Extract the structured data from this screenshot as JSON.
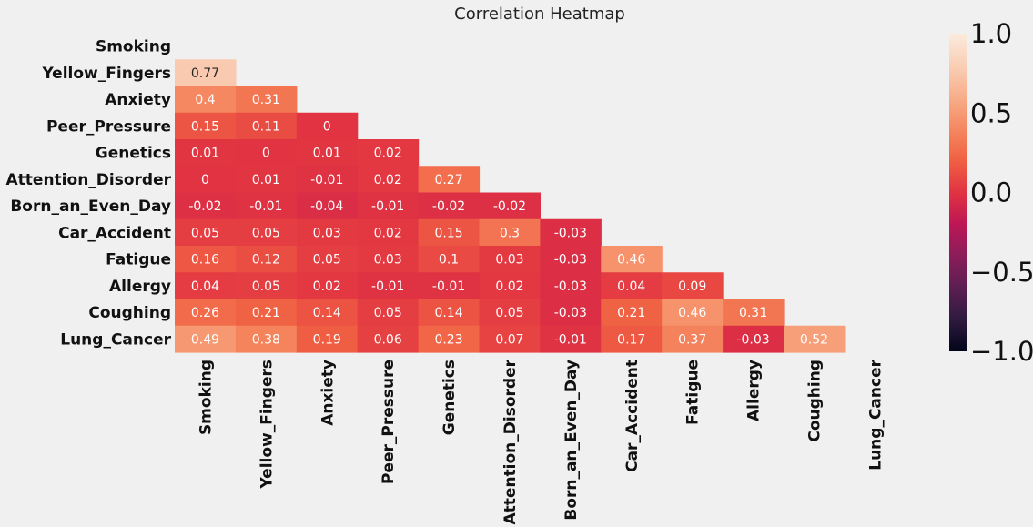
{
  "chart_data": {
    "type": "heatmap",
    "title": "Correlation Heatmap",
    "mask": "upper-triangle-including-diagonal",
    "variables": [
      "Smoking",
      "Yellow_Fingers",
      "Anxiety",
      "Peer_Pressure",
      "Genetics",
      "Attention_Disorder",
      "Born_an_Even_Day",
      "Car_Accident",
      "Fatigue",
      "Allergy",
      "Coughing",
      "Lung_Cancer"
    ],
    "values": [
      [
        null,
        null,
        null,
        null,
        null,
        null,
        null,
        null,
        null,
        null,
        null,
        null
      ],
      [
        0.77,
        null,
        null,
        null,
        null,
        null,
        null,
        null,
        null,
        null,
        null,
        null
      ],
      [
        0.4,
        0.31,
        null,
        null,
        null,
        null,
        null,
        null,
        null,
        null,
        null,
        null
      ],
      [
        0.15,
        0.11,
        0,
        null,
        null,
        null,
        null,
        null,
        null,
        null,
        null,
        null
      ],
      [
        0.01,
        0,
        0.01,
        0.02,
        null,
        null,
        null,
        null,
        null,
        null,
        null,
        null
      ],
      [
        0,
        0.01,
        -0.01,
        0.02,
        0.27,
        null,
        null,
        null,
        null,
        null,
        null,
        null
      ],
      [
        -0.02,
        -0.01,
        -0.04,
        -0.01,
        -0.02,
        -0.02,
        null,
        null,
        null,
        null,
        null,
        null
      ],
      [
        0.05,
        0.05,
        0.03,
        0.02,
        0.15,
        0.3,
        -0.03,
        null,
        null,
        null,
        null,
        null
      ],
      [
        0.16,
        0.12,
        0.05,
        0.03,
        0.1,
        0.03,
        -0.03,
        0.46,
        null,
        null,
        null,
        null
      ],
      [
        0.04,
        0.05,
        0.02,
        -0.01,
        -0.01,
        0.02,
        -0.03,
        0.04,
        0.09,
        null,
        null,
        null
      ],
      [
        0.26,
        0.21,
        0.14,
        0.05,
        0.14,
        0.05,
        -0.03,
        0.21,
        0.46,
        0.31,
        null,
        null
      ],
      [
        0.49,
        0.38,
        0.19,
        0.06,
        0.23,
        0.07,
        -0.01,
        0.17,
        0.37,
        -0.03,
        0.52,
        null
      ]
    ],
    "colorbar": {
      "range": [
        -1,
        1
      ],
      "ticks": [
        1.0,
        0.5,
        0.0,
        -0.5,
        -1.0
      ],
      "tick_labels": [
        "1.0",
        "0.5",
        "0.0",
        "−0.5",
        "−1.0"
      ],
      "colormap": "rocket",
      "colormap_stops": [
        "#03051a",
        "#2f1a3f",
        "#5b1e51",
        "#8b1d5b",
        "#bd1655",
        "#e13342",
        "#f06043",
        "#f58860",
        "#f7ae8a",
        "#f9cfb6",
        "#faebdd"
      ]
    }
  }
}
